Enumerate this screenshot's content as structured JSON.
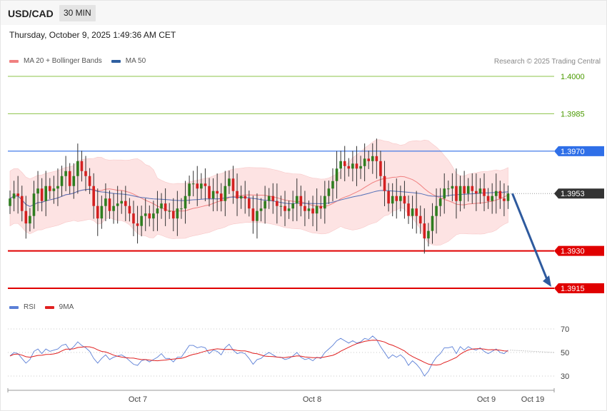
{
  "header": {
    "symbol": "USD/CAD",
    "timeframe": "30 MIN",
    "datetime": "Thursday, October 9, 2025 1:49:36 AM CET"
  },
  "legend_price": [
    {
      "label": "MA 20 + Bollinger Bands",
      "color": "#f08080"
    },
    {
      "label": "MA 50",
      "color": "#2f5fa0"
    }
  ],
  "legend_rsi": [
    {
      "label": "RSI",
      "color": "#5b7fd6"
    },
    {
      "label": "9MA",
      "color": "#e02020"
    }
  ],
  "credit": "Research © 2025 Trading Central",
  "chart_data": {
    "type": "candlestick",
    "ylim": [
      1.3905,
      1.4012
    ],
    "levels": [
      {
        "value": "1.4000",
        "price": 1.4,
        "kind": "target",
        "color": "#8bc34a",
        "text_color": "#4a9a00"
      },
      {
        "value": "1.3985",
        "price": 1.3985,
        "kind": "target",
        "color": "#8bc34a",
        "text_color": "#4a9a00"
      },
      {
        "value": "1.3970",
        "price": 1.397,
        "kind": "resistance",
        "color": "#2f6fe8",
        "text_color": "#ffffff"
      },
      {
        "value": "1.3953",
        "price": 1.3953,
        "kind": "last",
        "color": "#333333",
        "text_color": "#ffffff"
      },
      {
        "value": "1.3930",
        "price": 1.393,
        "kind": "support",
        "color": "#e00000",
        "text_color": "#ffffff"
      },
      {
        "value": "1.3915",
        "price": 1.3915,
        "kind": "support",
        "color": "#e00000",
        "text_color": "#ffffff"
      }
    ],
    "x_ticks": [
      "Oct 7",
      "Oct 8",
      "Oct 9",
      "Oct 19"
    ],
    "forecast_target": 1.3915,
    "candles_close": [
      1.3951,
      1.3953,
      1.3952,
      1.3946,
      1.3941,
      1.3944,
      1.3953,
      1.3955,
      1.395,
      1.3956,
      1.3954,
      1.3955,
      1.3956,
      1.396,
      1.3962,
      1.3956,
      1.396,
      1.3966,
      1.3962,
      1.396,
      1.3956,
      1.3948,
      1.3943,
      1.3948,
      1.3951,
      1.3946,
      1.3948,
      1.3949,
      1.395,
      1.3948,
      1.3945,
      1.3941,
      1.394,
      1.3944,
      1.3945,
      1.3943,
      1.3945,
      1.3947,
      1.3949,
      1.3946,
      1.3946,
      1.3943,
      1.3947,
      1.3947,
      1.3952,
      1.3957,
      1.3957,
      1.3955,
      1.3957,
      1.3956,
      1.3951,
      1.3954,
      1.3953,
      1.395,
      1.3956,
      1.3959,
      1.3954,
      1.3951,
      1.3952,
      1.3951,
      1.3947,
      1.3942,
      1.3946,
      1.3947,
      1.395,
      1.3952,
      1.395,
      1.3948,
      1.3948,
      1.3946,
      1.3947,
      1.3949,
      1.3952,
      1.3948,
      1.3946,
      1.3947,
      1.3945,
      1.3948,
      1.3947,
      1.3952,
      1.3955,
      1.3958,
      1.3963,
      1.3966,
      1.3964,
      1.3963,
      1.3965,
      1.3963,
      1.3964,
      1.3967,
      1.3966,
      1.3968,
      1.3966,
      1.396,
      1.3954,
      1.3949,
      1.3952,
      1.395,
      1.3952,
      1.3949,
      1.3944,
      1.3947,
      1.3944,
      1.3941,
      1.3935,
      1.3938,
      1.3944,
      1.3948,
      1.3951,
      1.3955,
      1.3955,
      1.3956,
      1.395,
      1.3956,
      1.3953,
      1.3956,
      1.3954,
      1.3953,
      1.3955,
      1.3952,
      1.395,
      1.3952,
      1.3954,
      1.3951,
      1.395,
      1.3953
    ],
    "rsi": [
      47,
      50,
      49,
      45,
      41,
      44,
      51,
      53,
      49,
      53,
      51,
      52,
      53,
      56,
      57,
      52,
      55,
      59,
      56,
      54,
      51,
      45,
      41,
      45,
      48,
      44,
      46,
      47,
      48,
      46,
      43,
      40,
      39,
      43,
      44,
      42,
      44,
      46,
      49,
      45,
      45,
      42,
      46,
      46,
      51,
      56,
      56,
      54,
      55,
      54,
      49,
      52,
      51,
      48,
      54,
      57,
      52,
      49,
      50,
      49,
      45,
      40,
      44,
      45,
      48,
      50,
      48,
      46,
      46,
      44,
      45,
      47,
      50,
      46,
      44,
      45,
      43,
      46,
      45,
      50,
      53,
      56,
      60,
      62,
      60,
      58,
      60,
      58,
      59,
      62,
      61,
      64,
      61,
      55,
      50,
      45,
      48,
      46,
      48,
      45,
      39,
      43,
      40,
      36,
      30,
      34,
      41,
      46,
      49,
      54,
      54,
      55,
      49,
      55,
      52,
      55,
      53,
      52,
      54,
      51,
      49,
      51,
      53,
      50,
      49,
      52
    ],
    "rsi_levels": [
      "70",
      "50",
      "30"
    ]
  }
}
